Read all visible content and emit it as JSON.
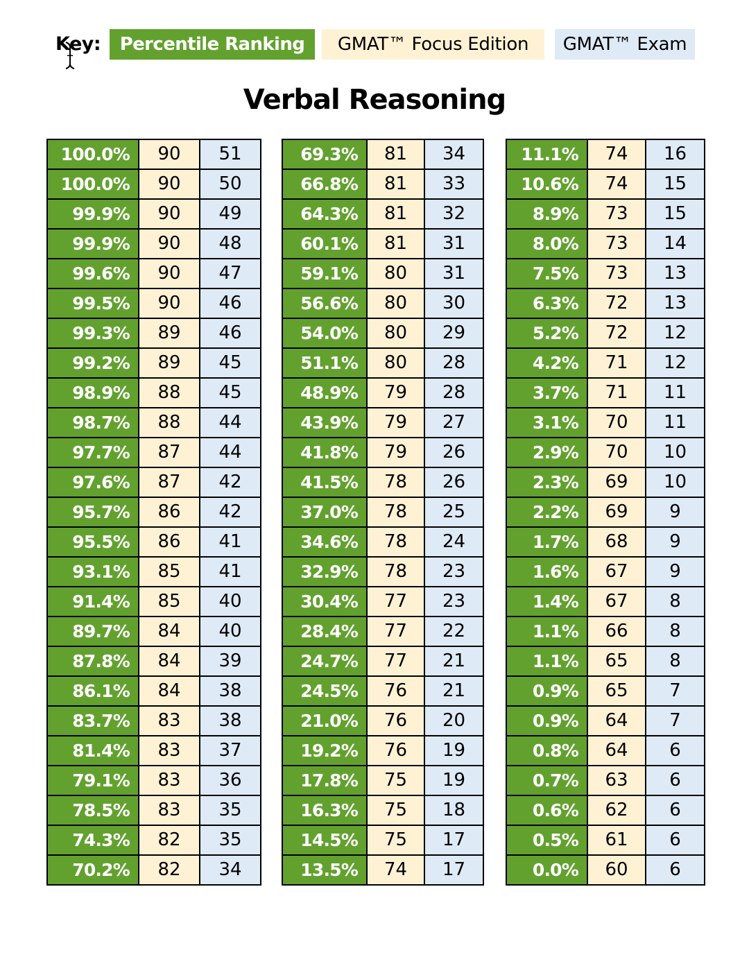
{
  "key": {
    "label": "Key:",
    "percentile_label": "Percentile Ranking",
    "focus_label": "GMAT™ Focus Edition",
    "exam_label": "GMAT™ Exam"
  },
  "colors": {
    "percentile": "#63A12F",
    "focus": "#FFF2D4",
    "exam": "#DEEAF6",
    "border": "#000000"
  },
  "title": "Verbal Reasoning",
  "tables": [
    {
      "columns": [
        "Percentile Ranking",
        "GMAT™ Focus Edition",
        "GMAT™ Exam"
      ],
      "rows": [
        [
          "100.0%",
          "90",
          "51"
        ],
        [
          "100.0%",
          "90",
          "50"
        ],
        [
          "99.9%",
          "90",
          "49"
        ],
        [
          "99.9%",
          "90",
          "48"
        ],
        [
          "99.6%",
          "90",
          "47"
        ],
        [
          "99.5%",
          "90",
          "46"
        ],
        [
          "99.3%",
          "89",
          "46"
        ],
        [
          "99.2%",
          "89",
          "45"
        ],
        [
          "98.9%",
          "88",
          "45"
        ],
        [
          "98.7%",
          "88",
          "44"
        ],
        [
          "97.7%",
          "87",
          "44"
        ],
        [
          "97.6%",
          "87",
          "42"
        ],
        [
          "95.7%",
          "86",
          "42"
        ],
        [
          "95.5%",
          "86",
          "41"
        ],
        [
          "93.1%",
          "85",
          "41"
        ],
        [
          "91.4%",
          "85",
          "40"
        ],
        [
          "89.7%",
          "84",
          "40"
        ],
        [
          "87.8%",
          "84",
          "39"
        ],
        [
          "86.1%",
          "84",
          "38"
        ],
        [
          "83.7%",
          "83",
          "38"
        ],
        [
          "81.4%",
          "83",
          "37"
        ],
        [
          "79.1%",
          "83",
          "36"
        ],
        [
          "78.5%",
          "83",
          "35"
        ],
        [
          "74.3%",
          "82",
          "35"
        ],
        [
          "70.2%",
          "82",
          "34"
        ]
      ]
    },
    {
      "columns": [
        "Percentile Ranking",
        "GMAT™ Focus Edition",
        "GMAT™ Exam"
      ],
      "rows": [
        [
          "69.3%",
          "81",
          "34"
        ],
        [
          "66.8%",
          "81",
          "33"
        ],
        [
          "64.3%",
          "81",
          "32"
        ],
        [
          "60.1%",
          "81",
          "31"
        ],
        [
          "59.1%",
          "80",
          "31"
        ],
        [
          "56.6%",
          "80",
          "30"
        ],
        [
          "54.0%",
          "80",
          "29"
        ],
        [
          "51.1%",
          "80",
          "28"
        ],
        [
          "48.9%",
          "79",
          "28"
        ],
        [
          "43.9%",
          "79",
          "27"
        ],
        [
          "41.8%",
          "79",
          "26"
        ],
        [
          "41.5%",
          "78",
          "26"
        ],
        [
          "37.0%",
          "78",
          "25"
        ],
        [
          "34.6%",
          "78",
          "24"
        ],
        [
          "32.9%",
          "78",
          "23"
        ],
        [
          "30.4%",
          "77",
          "23"
        ],
        [
          "28.4%",
          "77",
          "22"
        ],
        [
          "24.7%",
          "77",
          "21"
        ],
        [
          "24.5%",
          "76",
          "21"
        ],
        [
          "21.0%",
          "76",
          "20"
        ],
        [
          "19.2%",
          "76",
          "19"
        ],
        [
          "17.8%",
          "75",
          "19"
        ],
        [
          "16.3%",
          "75",
          "18"
        ],
        [
          "14.5%",
          "75",
          "17"
        ],
        [
          "13.5%",
          "74",
          "17"
        ]
      ]
    },
    {
      "columns": [
        "Percentile Ranking",
        "GMAT™ Focus Edition",
        "GMAT™ Exam"
      ],
      "rows": [
        [
          "11.1%",
          "74",
          "16"
        ],
        [
          "10.6%",
          "74",
          "15"
        ],
        [
          "8.9%",
          "73",
          "15"
        ],
        [
          "8.0%",
          "73",
          "14"
        ],
        [
          "7.5%",
          "73",
          "13"
        ],
        [
          "6.3%",
          "72",
          "13"
        ],
        [
          "5.2%",
          "72",
          "12"
        ],
        [
          "4.2%",
          "71",
          "12"
        ],
        [
          "3.7%",
          "71",
          "11"
        ],
        [
          "3.1%",
          "70",
          "11"
        ],
        [
          "2.9%",
          "70",
          "10"
        ],
        [
          "2.3%",
          "69",
          "10"
        ],
        [
          "2.2%",
          "69",
          "9"
        ],
        [
          "1.7%",
          "68",
          "9"
        ],
        [
          "1.6%",
          "67",
          "9"
        ],
        [
          "1.4%",
          "67",
          "8"
        ],
        [
          "1.1%",
          "66",
          "8"
        ],
        [
          "1.1%",
          "65",
          "8"
        ],
        [
          "0.9%",
          "65",
          "7"
        ],
        [
          "0.9%",
          "64",
          "7"
        ],
        [
          "0.8%",
          "64",
          "6"
        ],
        [
          "0.7%",
          "63",
          "6"
        ],
        [
          "0.6%",
          "62",
          "6"
        ],
        [
          "0.5%",
          "61",
          "6"
        ],
        [
          "0.0%",
          "60",
          "6"
        ]
      ]
    }
  ]
}
